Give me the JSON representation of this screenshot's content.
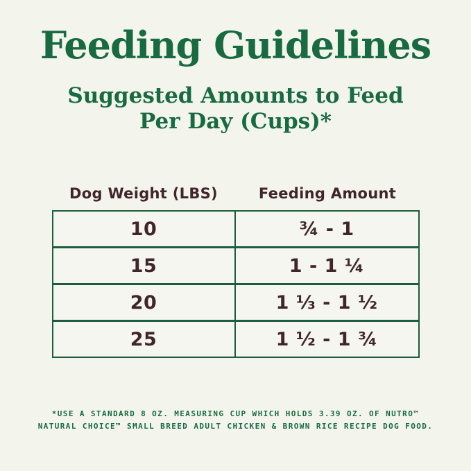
{
  "page": {
    "title": "Feeding Guidelines",
    "subtitle_line1": "Suggested Amounts to Feed",
    "subtitle_line2": "Per Day (Cups)*"
  },
  "table": {
    "columns": [
      "Dog Weight (LBS)",
      "Feeding Amount"
    ],
    "rows": [
      {
        "weight": "10",
        "amount": "¾ - 1"
      },
      {
        "weight": "15",
        "amount": "1 - 1 ¼"
      },
      {
        "weight": "20",
        "amount": "1 ⅓ - 1 ½"
      },
      {
        "weight": "25",
        "amount": "1 ½ - 1 ¾"
      }
    ]
  },
  "footnote": {
    "line1": "*USE A STANDARD 8 OZ. MEASURING CUP WHICH HOLDS 3.39 OZ. OF NUTRO™",
    "line2": "NATURAL CHOICE™ SMALL BREED ADULT CHICKEN & BROWN RICE RECIPE DOG FOOD."
  },
  "colors": {
    "background": "#f3f4ec",
    "heading_green": "#186a41",
    "table_border_green": "#1d5c3e",
    "table_text_brown": "#40262b"
  }
}
